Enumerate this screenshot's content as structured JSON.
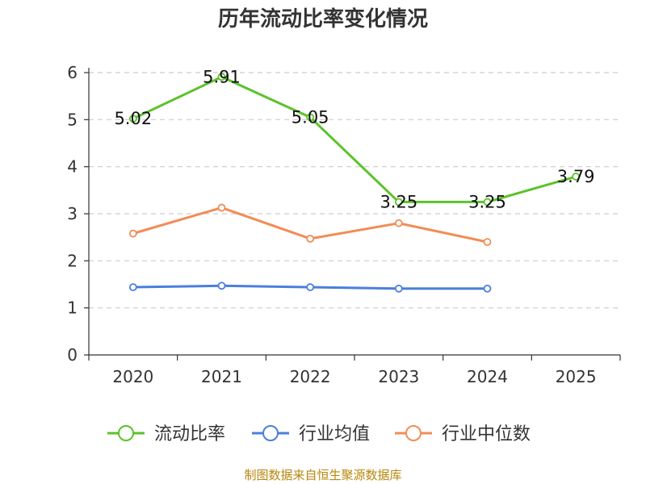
{
  "chart_data": {
    "type": "line",
    "title": "历年流动比率变化情况",
    "categories": [
      "2020",
      "2021",
      "2022",
      "2023",
      "2024",
      "2025"
    ],
    "ylim": [
      0,
      6
    ],
    "yticks": [
      "0",
      "1",
      "2",
      "3",
      "4",
      "5",
      "6"
    ],
    "grid": true,
    "legend_position": "bottom",
    "series": [
      {
        "name": "流动比率",
        "color": "#5cc22b",
        "values": [
          5.02,
          5.91,
          5.05,
          3.25,
          3.25,
          3.79
        ],
        "labels": [
          "5.02",
          "5.91",
          "5.05",
          "3.25",
          "3.25",
          "3.79"
        ]
      },
      {
        "name": "行业均值",
        "color": "#4a7fdc",
        "values": [
          1.44,
          1.47,
          1.44,
          1.41,
          1.41,
          null
        ]
      },
      {
        "name": "行业中位数",
        "color": "#f28c57",
        "values": [
          2.58,
          3.13,
          2.47,
          2.8,
          2.4,
          null
        ]
      }
    ]
  },
  "source": "制图数据来自恒生聚源数据库"
}
